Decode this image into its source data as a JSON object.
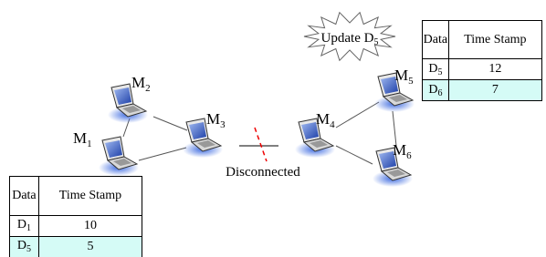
{
  "nodes": [
    {
      "label": {
        "base": "M",
        "sub": "1"
      }
    },
    {
      "label": {
        "base": "M",
        "sub": "2"
      }
    },
    {
      "label": {
        "base": "M",
        "sub": "3"
      }
    },
    {
      "label": {
        "base": "M",
        "sub": "4"
      }
    },
    {
      "label": {
        "base": "M",
        "sub": "5"
      }
    },
    {
      "label": {
        "base": "M",
        "sub": "6"
      }
    }
  ],
  "link_label": "Disconnected",
  "callout": {
    "text": "Update D",
    "sub": "5"
  },
  "tables": [
    {
      "header": [
        "Data",
        "Time Stamp"
      ],
      "rows": [
        [
          {
            "base": "D",
            "sub": "5"
          },
          "12"
        ],
        [
          {
            "base": "D",
            "sub": "6"
          },
          "7"
        ]
      ]
    },
    {
      "header": [
        "Data",
        "Time Stamp"
      ],
      "rows": [
        [
          {
            "base": "D",
            "sub": "1"
          },
          "10"
        ],
        [
          {
            "base": "D",
            "sub": "5"
          },
          "5"
        ]
      ]
    }
  ]
}
